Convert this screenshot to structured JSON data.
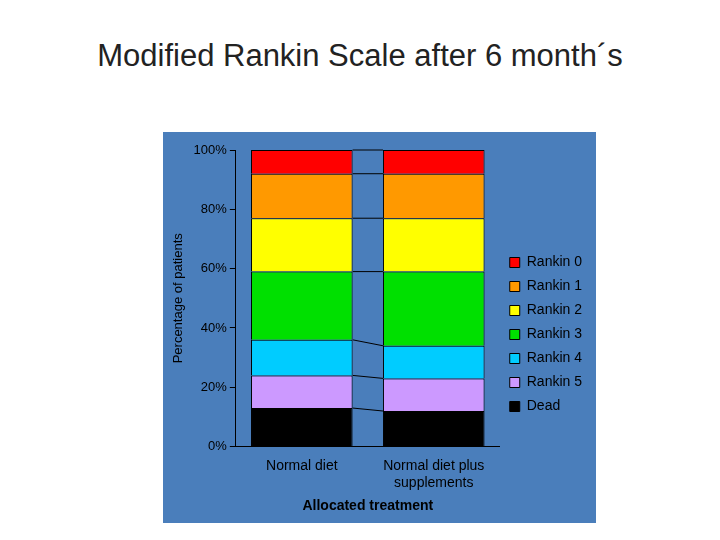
{
  "chart_data": {
    "type": "bar",
    "title": "Modified Rankin Scale after 6 month´s",
    "x_label": "Allocated treatment",
    "y_label": "Percentage of patients",
    "categories": [
      "Normal diet",
      "Normal diet plus supplements"
    ],
    "series": [
      {
        "name": "Rankin 0",
        "color": "#ff0000",
        "values": [
          8,
          8
        ]
      },
      {
        "name": "Rankin 1",
        "color": "#ff9900",
        "values": [
          15,
          15
        ]
      },
      {
        "name": "Rankin 2",
        "color": "#ffff00",
        "values": [
          18,
          18
        ]
      },
      {
        "name": "Rankin 3",
        "color": "#00e000",
        "values": [
          23,
          25
        ]
      },
      {
        "name": "Rankin 4",
        "color": "#00ccff",
        "values": [
          12,
          11
        ]
      },
      {
        "name": "Rankin 5",
        "color": "#cc99ff",
        "values": [
          11,
          11
        ]
      },
      {
        "name": "Dead",
        "color": "#000000",
        "values": [
          13,
          12
        ]
      }
    ],
    "stacked": true,
    "ylim": [
      0,
      100
    ],
    "yticks": [
      {
        "value": 0,
        "label": "0%"
      },
      {
        "value": 20,
        "label": "20%"
      },
      {
        "value": 40,
        "label": "40%"
      },
      {
        "value": 60,
        "label": "60%"
      },
      {
        "value": 80,
        "label": "80%"
      },
      {
        "value": 100,
        "label": "100%"
      }
    ],
    "grid": false,
    "legend": "right"
  }
}
